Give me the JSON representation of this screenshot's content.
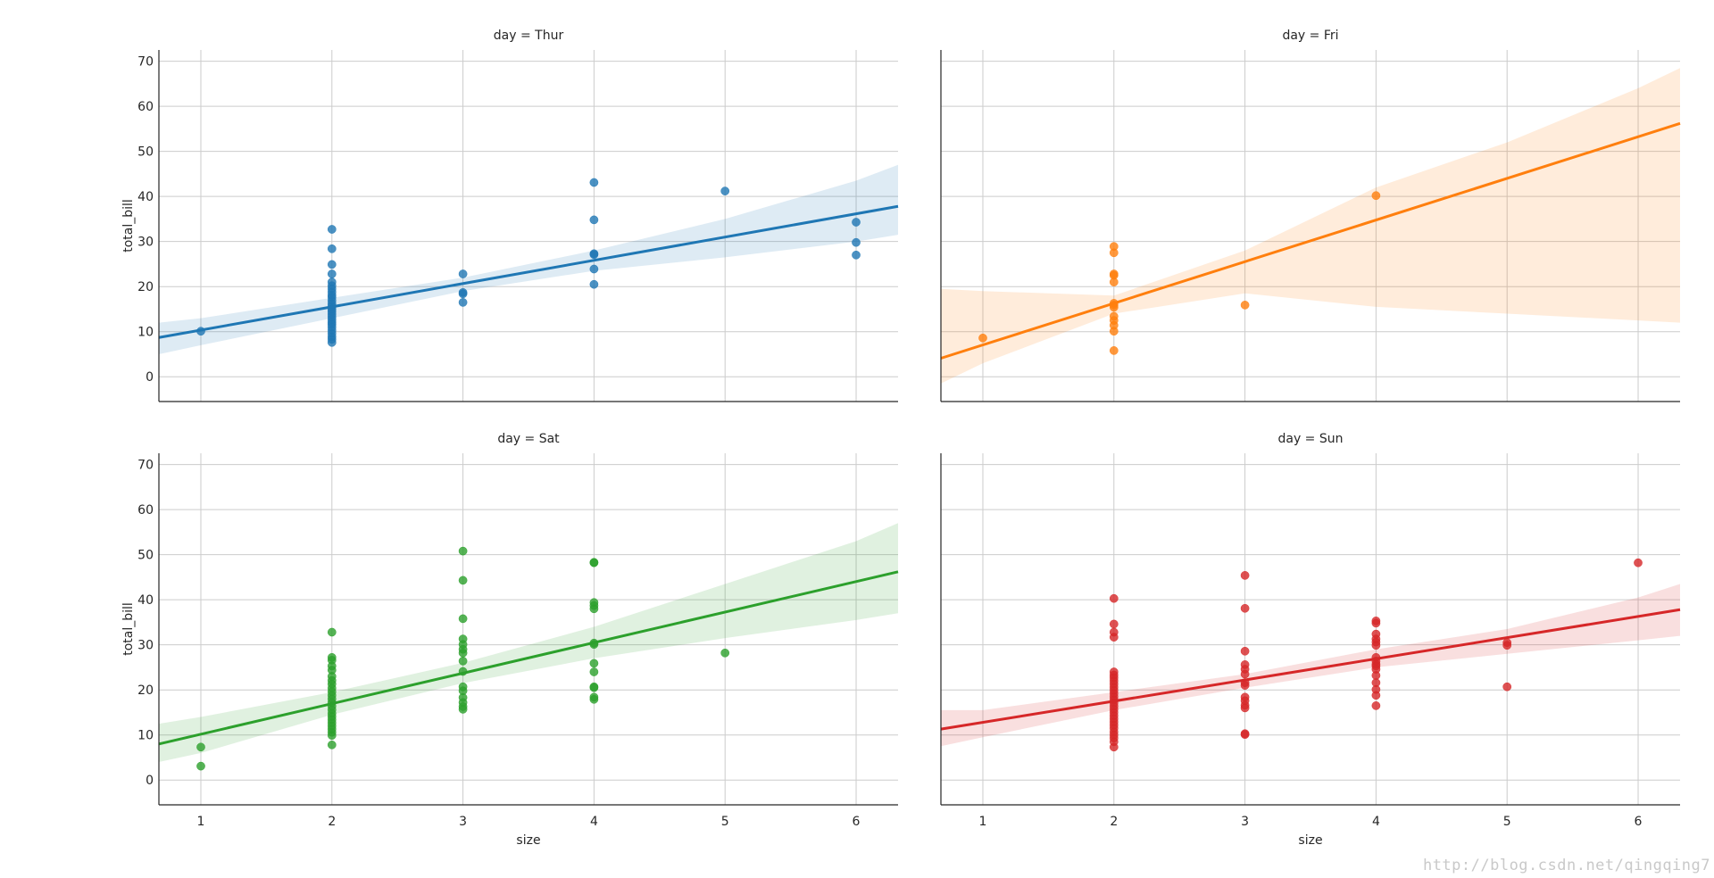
{
  "watermark": "http://blog.csdn.net/qingqing7",
  "chart_data": {
    "type": "scatter",
    "layout": "2x2 facet grid (col_wrap=2), shared x and y axes",
    "xlabel": "size",
    "ylabel": "total_bill",
    "xlim": [
      0.68,
      6.32
    ],
    "ylim": [
      -5.5,
      72.5
    ],
    "xticks": [
      1,
      2,
      3,
      4,
      5,
      6
    ],
    "yticks": [
      0,
      10,
      20,
      30,
      40,
      50,
      60,
      70
    ],
    "grid": true,
    "facets": [
      {
        "title": "day = Thur",
        "color": "#1f77b4",
        "points": [
          [
            1,
            10.1
          ],
          [
            2,
            32.7
          ],
          [
            2,
            28.4
          ],
          [
            2,
            24.9
          ],
          [
            2,
            22.8
          ],
          [
            2,
            21.0
          ],
          [
            2,
            20.2
          ],
          [
            2,
            19.5
          ],
          [
            2,
            18.8
          ],
          [
            2,
            18.1
          ],
          [
            2,
            17.6
          ],
          [
            2,
            16.9
          ],
          [
            2,
            16.2
          ],
          [
            2,
            15.6
          ],
          [
            2,
            15.0
          ],
          [
            2,
            14.5
          ],
          [
            2,
            13.9
          ],
          [
            2,
            13.3
          ],
          [
            2,
            12.7
          ],
          [
            2,
            12.1
          ],
          [
            2,
            11.6
          ],
          [
            2,
            11.0
          ],
          [
            2,
            10.3
          ],
          [
            2,
            9.6
          ],
          [
            2,
            8.9
          ],
          [
            2,
            8.3
          ],
          [
            2,
            7.6
          ],
          [
            3,
            22.8
          ],
          [
            3,
            18.7
          ],
          [
            3,
            18.4
          ],
          [
            3,
            16.5
          ],
          [
            4,
            43.1
          ],
          [
            4,
            34.8
          ],
          [
            4,
            27.3
          ],
          [
            4,
            27.1
          ],
          [
            4,
            23.9
          ],
          [
            4,
            20.5
          ],
          [
            5,
            41.2
          ],
          [
            6,
            34.3
          ],
          [
            6,
            29.8
          ],
          [
            6,
            27.0
          ]
        ],
        "fit": {
          "x": [
            0.68,
            6.32
          ],
          "y": [
            8.7,
            37.8
          ]
        },
        "ci": {
          "x": [
            0.68,
            1,
            2,
            3,
            4,
            5,
            6,
            6.32
          ],
          "lower": [
            5.0,
            7.0,
            13.0,
            19.0,
            23.5,
            26.5,
            30.0,
            31.5
          ],
          "upper": [
            12.0,
            13.0,
            17.5,
            22.0,
            28.0,
            35.0,
            43.5,
            47.0
          ]
        }
      },
      {
        "title": "day = Fri",
        "color": "#ff7f0e",
        "points": [
          [
            1,
            8.6
          ],
          [
            2,
            28.9
          ],
          [
            2,
            27.5
          ],
          [
            2,
            22.8
          ],
          [
            2,
            22.5
          ],
          [
            2,
            21.0
          ],
          [
            2,
            16.3
          ],
          [
            2,
            15.9
          ],
          [
            2,
            15.4
          ],
          [
            2,
            13.4
          ],
          [
            2,
            12.5
          ],
          [
            2,
            11.4
          ],
          [
            2,
            10.1
          ],
          [
            2,
            5.8
          ],
          [
            3,
            15.9
          ],
          [
            4,
            40.2
          ]
        ],
        "fit": {
          "x": [
            0.68,
            6.32
          ],
          "y": [
            4.1,
            56.2
          ]
        },
        "ci": {
          "x": [
            0.68,
            1,
            2,
            3,
            4,
            5,
            6,
            6.32
          ],
          "lower": [
            -1.5,
            3.0,
            14.0,
            18.5,
            15.5,
            14.0,
            12.5,
            12.0
          ],
          "upper": [
            19.5,
            19.0,
            18.0,
            28.0,
            42.0,
            52.0,
            64.0,
            68.5
          ]
        }
      },
      {
        "title": "day = Sat",
        "color": "#2ca02c",
        "points": [
          [
            1,
            7.3
          ],
          [
            1,
            3.1
          ],
          [
            2,
            32.8
          ],
          [
            2,
            27.2
          ],
          [
            2,
            26.6
          ],
          [
            2,
            25.3
          ],
          [
            2,
            24.4
          ],
          [
            2,
            23.0
          ],
          [
            2,
            22.1
          ],
          [
            2,
            21.3
          ],
          [
            2,
            20.4
          ],
          [
            2,
            19.6
          ],
          [
            2,
            18.8
          ],
          [
            2,
            18.0
          ],
          [
            2,
            17.2
          ],
          [
            2,
            16.4
          ],
          [
            2,
            15.6
          ],
          [
            2,
            14.8
          ],
          [
            2,
            14.1
          ],
          [
            2,
            13.4
          ],
          [
            2,
            12.7
          ],
          [
            2,
            12.0
          ],
          [
            2,
            11.3
          ],
          [
            2,
            10.6
          ],
          [
            2,
            9.9
          ],
          [
            2,
            7.8
          ],
          [
            3,
            50.8
          ],
          [
            3,
            44.3
          ],
          [
            3,
            35.8
          ],
          [
            3,
            31.3
          ],
          [
            3,
            30.1
          ],
          [
            3,
            29.0
          ],
          [
            3,
            28.2
          ],
          [
            3,
            26.4
          ],
          [
            3,
            24.1
          ],
          [
            3,
            20.7
          ],
          [
            3,
            19.8
          ],
          [
            3,
            18.3
          ],
          [
            3,
            17.2
          ],
          [
            3,
            16.3
          ],
          [
            3,
            15.7
          ],
          [
            4,
            48.3
          ],
          [
            4,
            48.2
          ],
          [
            4,
            39.4
          ],
          [
            4,
            38.7
          ],
          [
            4,
            38.0
          ],
          [
            4,
            30.4
          ],
          [
            4,
            30.1
          ],
          [
            4,
            25.9
          ],
          [
            4,
            24.0
          ],
          [
            4,
            20.7
          ],
          [
            4,
            20.5
          ],
          [
            4,
            18.4
          ],
          [
            4,
            17.9
          ],
          [
            5,
            28.2
          ]
        ],
        "fit": {
          "x": [
            0.68,
            6.32
          ],
          "y": [
            8.0,
            46.2
          ]
        },
        "ci": {
          "x": [
            0.68,
            1,
            2,
            3,
            4,
            5,
            6,
            6.32
          ],
          "lower": [
            4.0,
            6.0,
            14.5,
            21.5,
            27.0,
            31.5,
            35.5,
            37.0
          ],
          "upper": [
            12.5,
            14.0,
            19.5,
            26.0,
            34.0,
            43.5,
            53.0,
            57.0
          ]
        }
      },
      {
        "title": "day = Sun",
        "color": "#d62728",
        "points": [
          [
            2,
            40.3
          ],
          [
            2,
            34.6
          ],
          [
            2,
            32.8
          ],
          [
            2,
            31.7
          ],
          [
            2,
            24.0
          ],
          [
            2,
            23.3
          ],
          [
            2,
            22.7
          ],
          [
            2,
            22.0
          ],
          [
            2,
            21.3
          ],
          [
            2,
            20.6
          ],
          [
            2,
            19.9
          ],
          [
            2,
            19.2
          ],
          [
            2,
            18.5
          ],
          [
            2,
            17.8
          ],
          [
            2,
            17.1
          ],
          [
            2,
            16.4
          ],
          [
            2,
            15.7
          ],
          [
            2,
            15.0
          ],
          [
            2,
            14.3
          ],
          [
            2,
            13.6
          ],
          [
            2,
            12.9
          ],
          [
            2,
            12.2
          ],
          [
            2,
            11.5
          ],
          [
            2,
            10.7
          ],
          [
            2,
            10.0
          ],
          [
            2,
            9.3
          ],
          [
            2,
            8.5
          ],
          [
            2,
            7.3
          ],
          [
            3,
            45.4
          ],
          [
            3,
            38.1
          ],
          [
            3,
            28.6
          ],
          [
            3,
            25.6
          ],
          [
            3,
            24.6
          ],
          [
            3,
            23.5
          ],
          [
            3,
            21.6
          ],
          [
            3,
            21.0
          ],
          [
            3,
            18.4
          ],
          [
            3,
            17.6
          ],
          [
            3,
            16.6
          ],
          [
            3,
            16.0
          ],
          [
            3,
            10.3
          ],
          [
            3,
            10.1
          ],
          [
            4,
            35.3
          ],
          [
            4,
            34.8
          ],
          [
            4,
            32.4
          ],
          [
            4,
            31.3
          ],
          [
            4,
            30.6
          ],
          [
            4,
            29.9
          ],
          [
            4,
            27.2
          ],
          [
            4,
            26.4
          ],
          [
            4,
            25.7
          ],
          [
            4,
            25.3
          ],
          [
            4,
            24.6
          ],
          [
            4,
            23.2
          ],
          [
            4,
            21.6
          ],
          [
            4,
            20.1
          ],
          [
            4,
            18.8
          ],
          [
            4,
            16.5
          ],
          [
            5,
            30.5
          ],
          [
            5,
            29.9
          ],
          [
            5,
            20.7
          ],
          [
            6,
            48.2
          ]
        ],
        "fit": {
          "x": [
            0.68,
            6.32
          ],
          "y": [
            11.3,
            37.8
          ]
        },
        "ci": {
          "x": [
            0.68,
            1,
            2,
            3,
            4,
            5,
            6,
            6.32
          ],
          "lower": [
            7.5,
            9.5,
            15.5,
            20.5,
            25.0,
            28.0,
            31.0,
            32.0
          ],
          "upper": [
            15.5,
            15.5,
            19.5,
            23.5,
            29.0,
            33.5,
            40.5,
            43.5
          ]
        }
      }
    ]
  }
}
